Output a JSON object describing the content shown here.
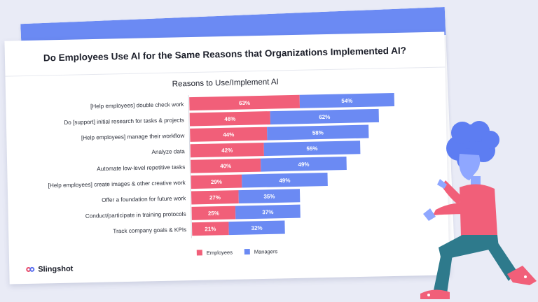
{
  "headline": "Do Employees Use AI for the Same Reasons that Organizations Implemented AI?",
  "brand": {
    "name": "Slingshot"
  },
  "colors": {
    "employees": "#f15f79",
    "managers": "#6b8af3",
    "back_bar": "#6b8af3",
    "background": "#e9ebf6"
  },
  "chart_data": {
    "type": "bar",
    "orientation": "horizontal",
    "stacked": true,
    "title": "Reasons to Use/Implement AI",
    "categories": [
      "[Help employees] double check work",
      "Do [support] initial research for tasks & projects",
      "[Help employees] manage their workflow",
      "Analyze data",
      "Automate low-level repetitive tasks",
      "[Help employees] create images & other creative work",
      "Offer a foundation for future work",
      "Conduct/participate in training protocols",
      "Track company goals & KPIs"
    ],
    "series": [
      {
        "name": "Employees",
        "values": [
          63,
          46,
          44,
          42,
          40,
          29,
          27,
          25,
          21
        ]
      },
      {
        "name": "Managers",
        "values": [
          54,
          62,
          58,
          55,
          49,
          49,
          35,
          37,
          32
        ]
      }
    ],
    "value_suffix": "%",
    "legend": "bottom",
    "grid": false
  }
}
